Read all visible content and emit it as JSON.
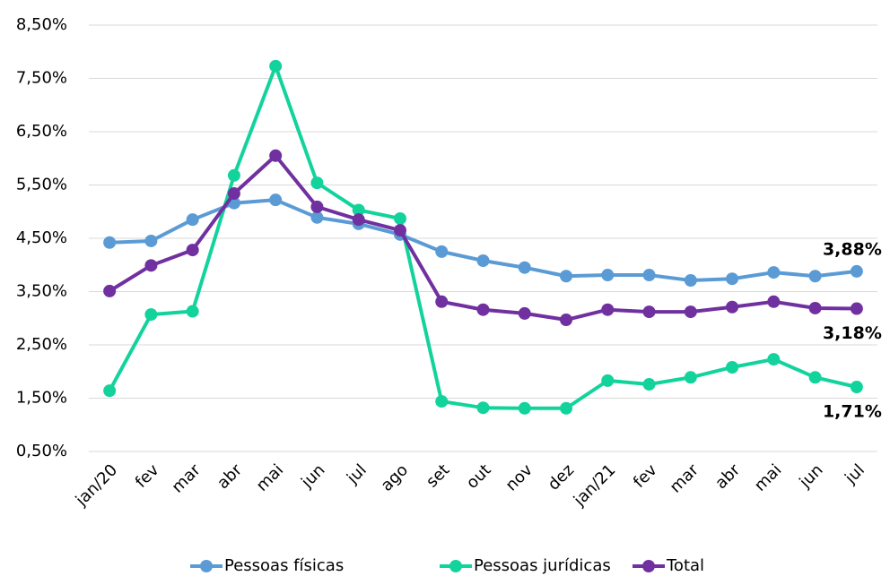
{
  "chart_data": {
    "type": "line",
    "categories": [
      "jan/20",
      "fev",
      "mar",
      "abr",
      "mai",
      "jun",
      "jul",
      "ago",
      "set",
      "out",
      "nov",
      "dez",
      "jan/21",
      "fev",
      "mar",
      "abr",
      "mai",
      "jun",
      "jul"
    ],
    "series": [
      {
        "name": "Pessoas físicas",
        "color": "#5b9bd5",
        "values": [
          4.42,
          4.45,
          4.85,
          5.16,
          5.22,
          4.89,
          4.77,
          4.57,
          4.25,
          4.08,
          3.95,
          3.79,
          3.81,
          3.81,
          3.71,
          3.74,
          3.86,
          3.79,
          3.88
        ],
        "value_labels": [
          null,
          null,
          null,
          null,
          null,
          null,
          null,
          null,
          null,
          null,
          null,
          null,
          null,
          null,
          null,
          null,
          null,
          null,
          "3,88%"
        ]
      },
      {
        "name": "Pessoas jurídicas",
        "color": "#13d39c",
        "values": [
          1.64,
          3.07,
          3.13,
          5.68,
          7.73,
          5.54,
          5.03,
          4.87,
          1.44,
          1.32,
          1.31,
          1.31,
          1.83,
          1.76,
          1.89,
          2.08,
          2.23,
          1.89,
          1.71
        ],
        "value_labels": [
          null,
          null,
          null,
          null,
          null,
          null,
          null,
          null,
          null,
          null,
          null,
          null,
          null,
          null,
          null,
          null,
          null,
          null,
          "1,71%"
        ]
      },
      {
        "name": "Total",
        "color": "#7030a0",
        "values": [
          3.51,
          3.99,
          4.28,
          5.34,
          6.05,
          5.09,
          4.85,
          4.65,
          3.31,
          3.16,
          3.09,
          2.97,
          3.16,
          3.12,
          3.12,
          3.21,
          3.31,
          3.19,
          3.18
        ],
        "value_labels": [
          null,
          null,
          null,
          null,
          null,
          null,
          null,
          null,
          null,
          null,
          null,
          null,
          null,
          null,
          null,
          null,
          null,
          null,
          "3,18%"
        ]
      }
    ],
    "ylim": [
      0.5,
      8.5
    ],
    "yticks": [
      {
        "value": 0.5,
        "label": "0,50%"
      },
      {
        "value": 1.5,
        "label": "1,50%"
      },
      {
        "value": 2.5,
        "label": "2,50%"
      },
      {
        "value": 3.5,
        "label": "3,50%"
      },
      {
        "value": 4.5,
        "label": "4,50%"
      },
      {
        "value": 5.5,
        "label": "5,50%"
      },
      {
        "value": 6.5,
        "label": "6,50%"
      },
      {
        "value": 7.5,
        "label": "7,50%"
      },
      {
        "value": 8.5,
        "label": "8,50%"
      }
    ],
    "grid": true,
    "legend": "bottom"
  }
}
